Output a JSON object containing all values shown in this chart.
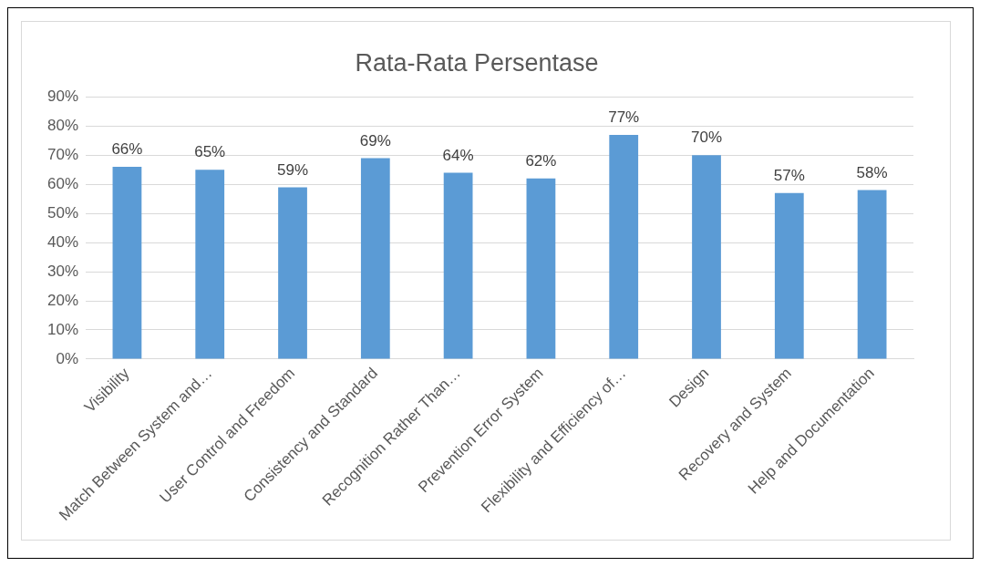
{
  "chart_data": {
    "type": "bar",
    "title": "Rata-Rata Persentase",
    "categories": [
      "Visibility",
      "Match Between System and…",
      "User Control and Freedom",
      "Consistency and Standard",
      "Recognition Rather Than…",
      "Prevention Error System",
      "Flexibility and Efficiency of…",
      "Design",
      "Recovery and System",
      "Help and Documentation"
    ],
    "values": [
      66,
      65,
      59,
      69,
      64,
      62,
      77,
      70,
      57,
      58
    ],
    "value_labels": [
      "66%",
      "65%",
      "59%",
      "69%",
      "64%",
      "62%",
      "77%",
      "70%",
      "57%",
      "58%"
    ],
    "color": "#5b9bd5",
    "ylim": [
      0,
      90
    ],
    "yticks": [
      {
        "value": 0,
        "label": "0%"
      },
      {
        "value": 10,
        "label": "10%"
      },
      {
        "value": 20,
        "label": "20%"
      },
      {
        "value": 30,
        "label": "30%"
      },
      {
        "value": 40,
        "label": "40%"
      },
      {
        "value": 50,
        "label": "50%"
      },
      {
        "value": 60,
        "label": "60%"
      },
      {
        "value": 70,
        "label": "70%"
      },
      {
        "value": 80,
        "label": "80%"
      },
      {
        "value": 90,
        "label": "90%"
      }
    ],
    "grid": "y",
    "legend": false
  }
}
